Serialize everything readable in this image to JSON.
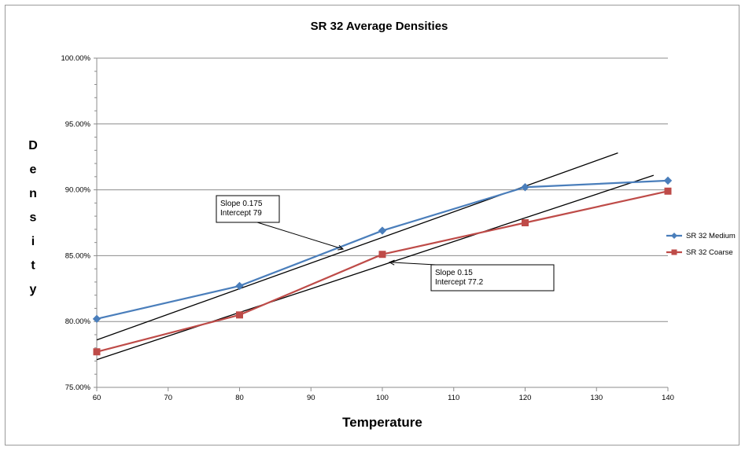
{
  "chart_data": {
    "type": "line",
    "title": "SR 32 Average Densities",
    "xlabel": "Temperature",
    "ylabel": "Density",
    "xlim": [
      60,
      140
    ],
    "ylim": [
      0.75,
      1.0
    ],
    "x_ticks": [
      "60",
      "70",
      "80",
      "90",
      "100",
      "110",
      "120",
      "130",
      "140"
    ],
    "y_ticks": [
      "75.00%",
      "80.00%",
      "85.00%",
      "90.00%",
      "95.00%",
      "100.00%"
    ],
    "grid": "horizontal",
    "legend_position": "right",
    "series": [
      {
        "name": "SR 32 Medium",
        "color": "#4a7ebb",
        "marker": "diamond",
        "x": [
          60,
          80,
          100,
          120,
          140
        ],
        "y": [
          0.802,
          0.827,
          0.869,
          0.902,
          0.907
        ]
      },
      {
        "name": "SR 32 Coarse",
        "color": "#be4b48",
        "marker": "square",
        "x": [
          60,
          80,
          100,
          120,
          140
        ],
        "y": [
          0.777,
          0.805,
          0.851,
          0.875,
          0.899
        ]
      }
    ],
    "trendlines": [
      {
        "x": [
          60,
          133
        ],
        "y": [
          0.786,
          0.928
        ],
        "color": "#000000"
      },
      {
        "x": [
          60,
          138
        ],
        "y": [
          0.771,
          0.911
        ],
        "color": "#000000"
      }
    ],
    "annotations": [
      {
        "lines": [
          "Slope 0.175",
          "Intercept 79"
        ],
        "arrow_to": [
          94.5,
          0.855
        ]
      },
      {
        "lines": [
          "Slope 0.15",
          "Intercept 77.2"
        ],
        "arrow_to": [
          101,
          0.845
        ]
      }
    ]
  }
}
